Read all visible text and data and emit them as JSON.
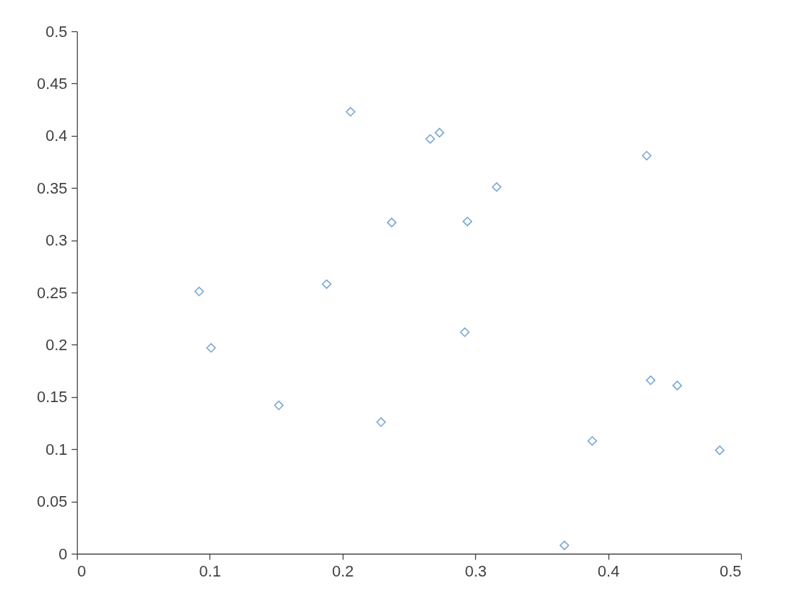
{
  "chart_data": {
    "type": "scatter",
    "x": [
      0.092,
      0.101,
      0.152,
      0.188,
      0.206,
      0.229,
      0.237,
      0.266,
      0.273,
      0.292,
      0.294,
      0.316,
      0.367,
      0.388,
      0.429,
      0.432,
      0.452,
      0.484
    ],
    "series": [
      {
        "color": "#3a7fcc",
        "values": [
          0.251,
          0.197,
          0.142,
          0.258,
          0.423,
          0.126,
          0.317,
          0.397,
          0.403,
          0.212,
          0.318,
          0.351,
          0.008,
          0.108,
          0.381,
          0.166,
          0.161,
          0.099
        ]
      }
    ],
    "xlim": [
      0,
      0.5
    ],
    "xticks": [
      0,
      0.1,
      0.2,
      0.3,
      0.4,
      0.5
    ],
    "ylim": [
      0,
      0.5
    ],
    "yticks": [
      0,
      0.05,
      0.1,
      0.15,
      0.2,
      0.25,
      0.3,
      0.35,
      0.4,
      0.45,
      0.5
    ],
    "marker": "diamond",
    "grid": false
  }
}
